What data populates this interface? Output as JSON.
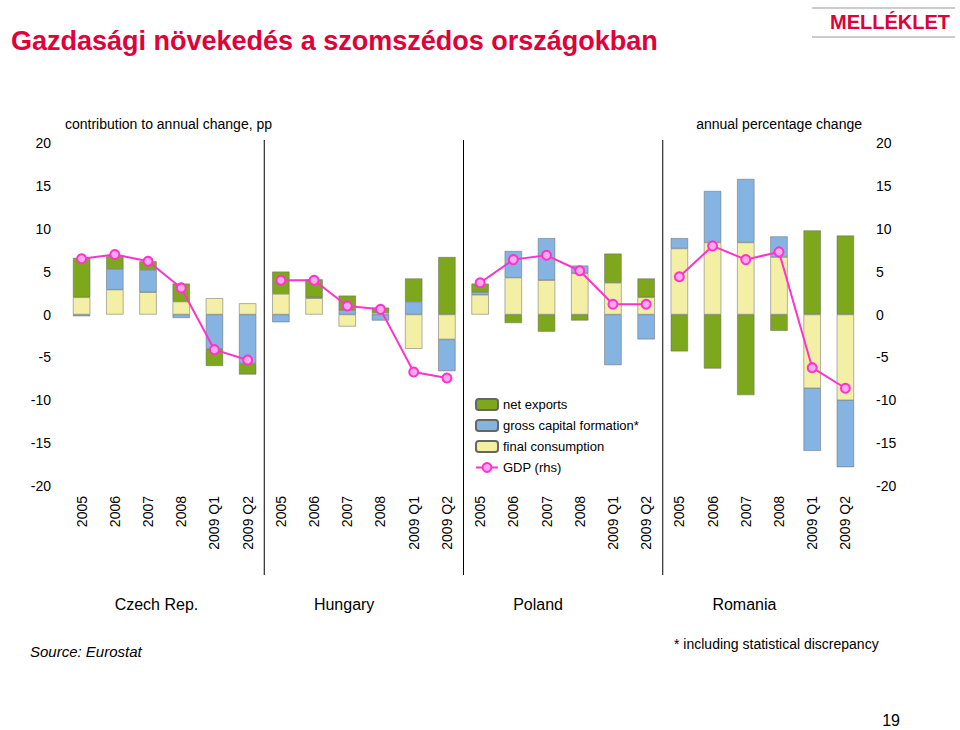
{
  "chart_data": {
    "type": "bar",
    "title": "Gazdasági növekedés a szomszédos országokban",
    "y_label": "contribution to annual change, pp",
    "y2_label": "annual percentage change",
    "categories": [
      "2005",
      "2006",
      "2007",
      "2008",
      "2009 Q1",
      "2009 Q2",
      "2005",
      "2006",
      "2007",
      "2008",
      "2009 Q1",
      "2009 Q2",
      "2005",
      "2006",
      "2007",
      "2008",
      "2009 Q1",
      "2009 Q2",
      "2005",
      "2006",
      "2007",
      "2008",
      "2009 Q1",
      "2009 Q2"
    ],
    "groups": [
      "Czech Rep.",
      "Hungary",
      "Poland",
      "Romania"
    ],
    "series": [
      {
        "name": "net exports",
        "color": "#7ea81c",
        "values": [
          4.6,
          1.5,
          1.0,
          2.1,
          -2.0,
          -1.3,
          2.6,
          2.1,
          1.7,
          0.6,
          2.7,
          6.7,
          1.0,
          -1.0,
          -2.0,
          -0.7,
          3.4,
          2.2,
          -4.3,
          -6.3,
          -9.4,
          -1.9,
          9.8,
          9.2
        ]
      },
      {
        "name": "gross capital formation*",
        "color": "#86b4e2",
        "values": [
          -0.2,
          2.4,
          2.6,
          -0.4,
          -4.0,
          -5.7,
          -0.9,
          0.1,
          0.5,
          -0.7,
          1.5,
          -3.7,
          0.3,
          3.1,
          4.9,
          0.9,
          -5.9,
          -2.9,
          1.2,
          6.0,
          7.4,
          2.4,
          -7.3,
          -7.8
        ]
      },
      {
        "name": "final consumption",
        "color": "#f3f0a6",
        "values": [
          2.0,
          2.9,
          2.6,
          1.5,
          1.9,
          1.3,
          2.4,
          1.9,
          -1.4,
          0.2,
          -4.0,
          -2.9,
          2.3,
          4.3,
          4.0,
          4.8,
          3.7,
          2.0,
          7.7,
          8.4,
          8.4,
          6.7,
          -8.6,
          -10.0
        ]
      },
      {
        "name": "GDP (rhs)",
        "type": "line",
        "axis": "y2",
        "color": "#ff33cc",
        "marker": "circle",
        "values": [
          6.5,
          7.0,
          6.2,
          3.1,
          -4.1,
          -5.3,
          4.0,
          4.0,
          1.0,
          0.6,
          -6.7,
          -7.4,
          3.7,
          6.4,
          6.9,
          5.1,
          1.2,
          1.2,
          4.4,
          8.0,
          6.4,
          7.3,
          -6.2,
          -8.6
        ]
      }
    ],
    "ylim": [
      -20,
      20
    ],
    "yticks": [
      -20,
      -15,
      -10,
      -5,
      0,
      5,
      10,
      15,
      20
    ],
    "y2lim": [
      -20,
      20
    ],
    "y2ticks": [
      -20,
      -15,
      -10,
      -5,
      0,
      5,
      10,
      15,
      20
    ],
    "stacked": true,
    "grid": false,
    "legend": "center",
    "source": "Source: Eurostat",
    "footnote": "* including statistical discrepancy"
  },
  "page": {
    "badge": "MELLÉKLET",
    "number": "19"
  }
}
